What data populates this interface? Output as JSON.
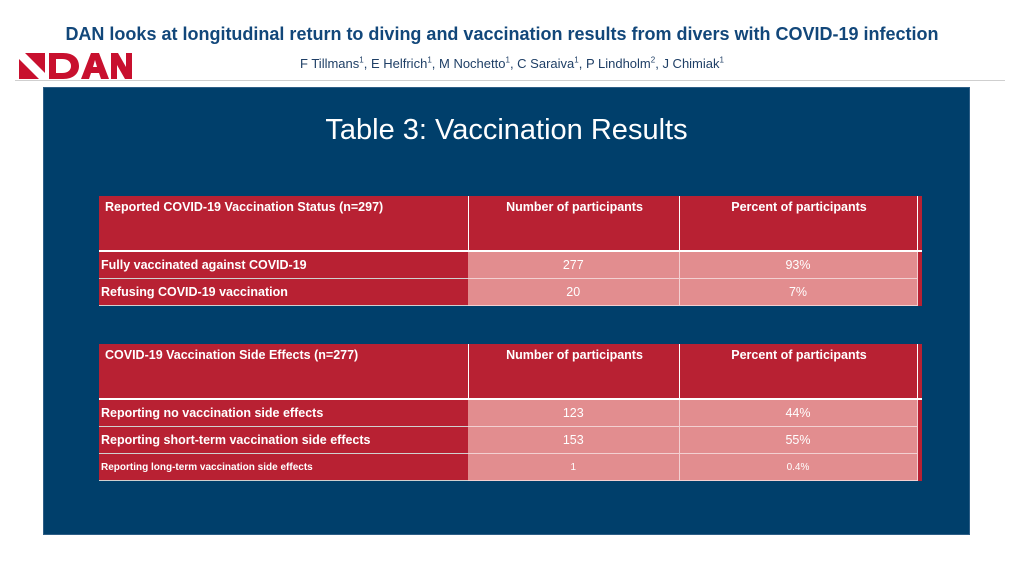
{
  "header": {
    "title": "DAN looks at longitudinal return to diving and vaccination results from divers with COVID-19 infection",
    "authors": [
      {
        "name": "F Tillmans",
        "aff": "1",
        "sep": ", "
      },
      {
        "name": "E Helfrich",
        "aff": "1",
        "sep": ", "
      },
      {
        "name": "M Nochetto",
        "aff": "1",
        "sep": ", "
      },
      {
        "name": "C Saraiva",
        "aff": "1",
        "sep": ", "
      },
      {
        "name": "P Lindholm",
        "aff": "2",
        "sep": ", "
      },
      {
        "name": "J Chimiak",
        "aff": "1",
        "sep": ""
      }
    ],
    "logo_text": "DAN",
    "logo_colors": {
      "red": "#c8102e",
      "blue": "#12477a"
    }
  },
  "panel": {
    "title": "Table 3: Vaccination Results",
    "bg_color": "#003f6b"
  },
  "table1": {
    "headers": [
      "Reported COVID-19 Vaccination Status (n=297)",
      "Number of participants",
      "Percent of participants"
    ],
    "rows": [
      {
        "label": "Fully vaccinated against COVID-19",
        "number": "277",
        "percent": "93%"
      },
      {
        "label": "Refusing COVID-19 vaccination",
        "number": "20",
        "percent": "7%"
      }
    ]
  },
  "table2": {
    "headers": [
      "COVID-19 Vaccination Side Effects (n=277)",
      "Number of participants",
      "Percent of participants"
    ],
    "rows": [
      {
        "label": "Reporting no vaccination side effects",
        "number": "123",
        "percent": "44%"
      },
      {
        "label": "Reporting short-term vaccination side effects",
        "number": "153",
        "percent": "55%"
      },
      {
        "label": "Reporting long-term vaccination side effects",
        "number": "1",
        "percent": "0.4%"
      }
    ]
  }
}
